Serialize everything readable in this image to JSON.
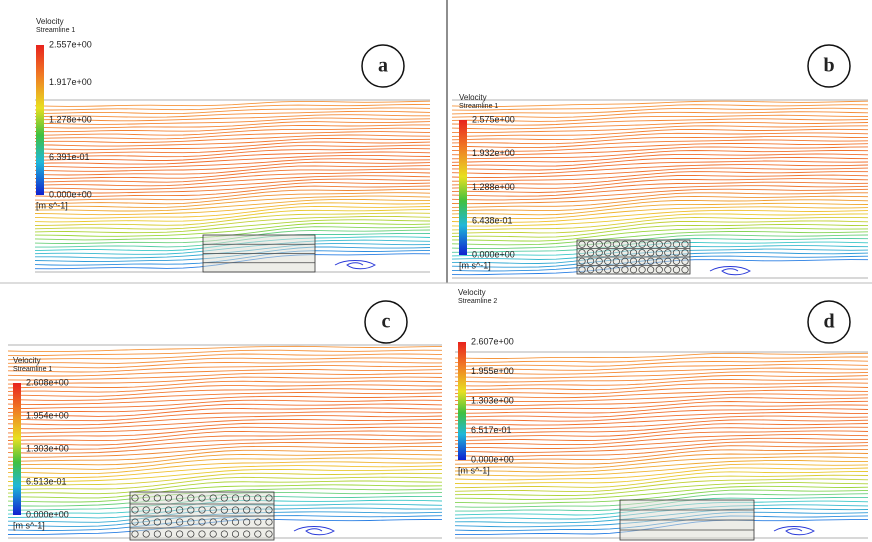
{
  "panels": [
    {
      "label": "a",
      "legend_title": "Velocity",
      "legend_subtitle": "Streamline 1",
      "ticks": [
        "2.557e+00",
        "1.917e+00",
        "1.278e+00",
        "6.391e-01",
        "0.000e+00"
      ],
      "unit": "[m s^-1]"
    },
    {
      "label": "b",
      "legend_title": "Velocity",
      "legend_subtitle": "Streamline 1",
      "ticks": [
        "2.575e+00",
        "1.932e+00",
        "1.288e+00",
        "6.438e-01",
        "0.000e+00"
      ],
      "unit": "[m s^-1]"
    },
    {
      "label": "c",
      "legend_title": "Velocity",
      "legend_subtitle": "Streamline 1",
      "ticks": [
        "2.608e+00",
        "1.954e+00",
        "1.303e+00",
        "6.513e-01",
        "0.000e+00"
      ],
      "unit": "[m s^-1]"
    },
    {
      "label": "d",
      "legend_title": "Velocity",
      "legend_subtitle": "Streamline 2",
      "ticks": [
        "2.607e+00",
        "1.955e+00",
        "1.303e+00",
        "6.517e-01",
        "0.000e+00"
      ],
      "unit": "[m s^-1]"
    }
  ]
}
